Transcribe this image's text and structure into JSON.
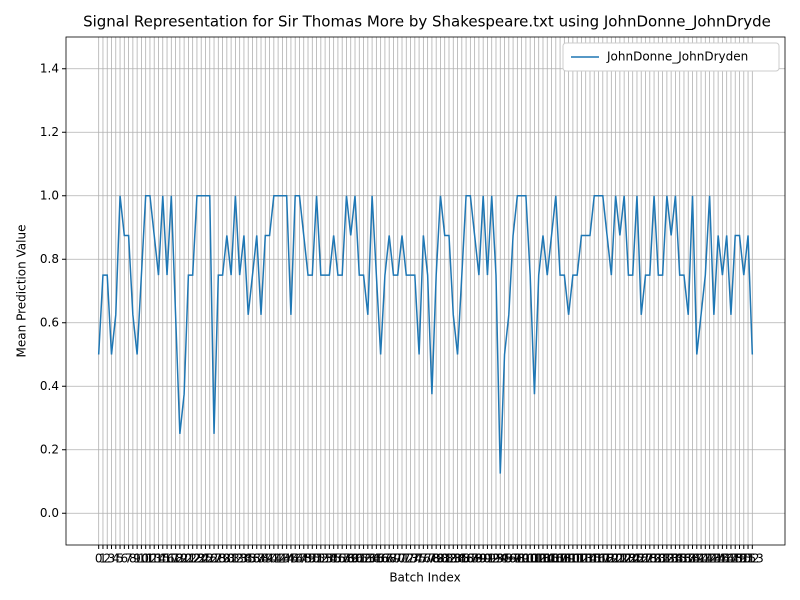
{
  "chart_data": {
    "type": "line",
    "title": "Signal Representation for Sir Thomas More by Shakespeare.txt using JohnDonne_JohnDryde",
    "xlabel": "Batch Index",
    "ylabel": "Mean Prediction Value",
    "x": [
      0,
      1,
      2,
      3,
      4,
      5,
      6,
      7,
      8,
      9,
      10,
      11,
      12,
      13,
      14,
      15,
      16,
      17,
      18,
      19,
      20,
      21,
      22,
      23,
      24,
      25,
      26,
      27,
      28,
      29,
      30,
      31,
      32,
      33,
      34,
      35,
      36,
      37,
      38,
      39,
      40,
      41,
      42,
      43,
      44,
      45,
      46,
      47,
      48,
      49,
      50,
      51,
      52,
      53,
      54,
      55,
      56,
      57,
      58,
      59,
      60,
      61,
      62,
      63,
      64,
      65,
      66,
      67,
      68,
      69,
      70,
      71,
      72,
      73,
      74,
      75,
      76,
      77,
      78,
      79,
      80,
      81,
      82,
      83,
      84,
      85,
      86,
      87,
      88,
      89,
      90,
      91,
      92,
      93,
      94,
      95,
      96,
      97,
      98,
      99,
      100,
      101,
      102,
      103,
      104,
      105,
      106,
      107,
      108,
      109,
      110,
      111,
      112,
      113,
      114,
      115,
      116,
      117,
      118,
      119,
      120,
      121,
      122,
      123,
      124,
      125,
      126,
      127,
      128,
      129,
      130,
      131,
      132,
      133,
      134,
      135,
      136,
      137,
      138,
      139,
      140,
      141,
      142,
      143,
      144,
      145,
      146,
      147,
      148,
      149,
      150,
      151,
      152,
      153
    ],
    "series": [
      {
        "name": "JohnDonne_JohnDryden",
        "color": "#1f77b4",
        "values": [
          0.5,
          0.75,
          0.75,
          0.5,
          0.625,
          1.0,
          0.875,
          0.875,
          0.625,
          0.5,
          0.75,
          1.0,
          1.0,
          0.875,
          0.75,
          1.0,
          0.75,
          1.0,
          0.625,
          0.25,
          0.375,
          0.75,
          0.75,
          1.0,
          1.0,
          1.0,
          1.0,
          0.25,
          0.75,
          0.75,
          0.875,
          0.75,
          1.0,
          0.75,
          0.875,
          0.625,
          0.75,
          0.875,
          0.625,
          0.875,
          0.875,
          1.0,
          1.0,
          1.0,
          1.0,
          0.625,
          1.0,
          1.0,
          0.875,
          0.75,
          0.75,
          1.0,
          0.75,
          0.75,
          0.75,
          0.875,
          0.75,
          0.75,
          1.0,
          0.875,
          1.0,
          0.75,
          0.75,
          0.625,
          1.0,
          0.75,
          0.5,
          0.75,
          0.875,
          0.75,
          0.75,
          0.875,
          0.75,
          0.75,
          0.75,
          0.5,
          0.875,
          0.75,
          0.375,
          0.75,
          1.0,
          0.875,
          0.875,
          0.625,
          0.5,
          0.75,
          1.0,
          1.0,
          0.875,
          0.75,
          1.0,
          0.75,
          1.0,
          0.75,
          0.125,
          0.5,
          0.625,
          0.875,
          1.0,
          1.0,
          1.0,
          0.75,
          0.375,
          0.75,
          0.875,
          0.75,
          0.875,
          1.0,
          0.75,
          0.75,
          0.625,
          0.75,
          0.75,
          0.875,
          0.875,
          0.875,
          1.0,
          1.0,
          1.0,
          0.875,
          0.75,
          1.0,
          0.875,
          1.0,
          0.75,
          0.75,
          1.0,
          0.625,
          0.75,
          0.75,
          1.0,
          0.75,
          0.75,
          1.0,
          0.875,
          1.0,
          0.75,
          0.75,
          0.625,
          1.0,
          0.5,
          0.625,
          0.75,
          1.0,
          0.625,
          0.875,
          0.75,
          0.875,
          0.625,
          0.875,
          0.875,
          0.75,
          0.875,
          0.5
        ]
      }
    ],
    "xlim": [
      -7.65,
      160.65
    ],
    "ylim": [
      -0.1,
      1.5
    ],
    "yticks": [
      {
        "value": 0,
        "label": "0.0"
      },
      0.2,
      0.4,
      0.6,
      0.8,
      {
        "value": 1,
        "label": "1.0"
      },
      1.2,
      1.4
    ],
    "grid": true,
    "legend": "upper right"
  }
}
